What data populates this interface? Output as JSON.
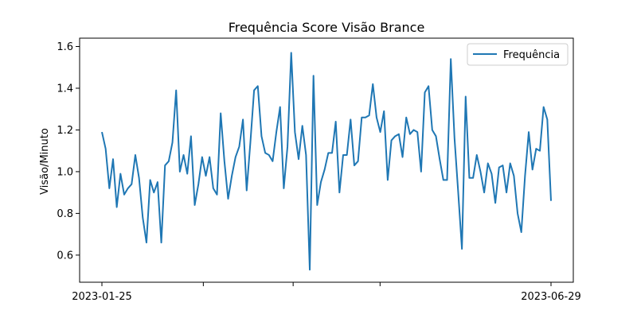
{
  "chart_data": {
    "type": "line",
    "title": "Frequência Score Visão Brance",
    "xlabel": "",
    "ylabel": "Visão/Minuto",
    "ylim": [
      0.47,
      1.64
    ],
    "y_ticks": [
      0.6,
      0.8,
      1.0,
      1.2,
      1.4,
      1.6
    ],
    "y_tick_labels": [
      "0.6",
      "0.8",
      "1.0",
      "1.2",
      "1.4",
      "1.6"
    ],
    "x_start": "2023-01-25",
    "x_end": "2023-06-29",
    "x_tick_labels": [
      {
        "value": "2023-01-25",
        "label": "2023-01-25"
      },
      {
        "value": "2023-03-01",
        "label": ""
      },
      {
        "value": "2023-04-01",
        "label": ""
      },
      {
        "value": "2023-05-01",
        "label": ""
      },
      {
        "value": "2023-06-29",
        "label": "2023-06-29"
      }
    ],
    "grid": false,
    "legend_position": "top-right",
    "series": [
      {
        "name": "Frequência",
        "color": "#1f77b4",
        "values": [
          1.19,
          1.11,
          0.92,
          1.06,
          0.83,
          0.99,
          0.89,
          0.92,
          0.94,
          1.08,
          0.97,
          0.78,
          0.66,
          0.96,
          0.9,
          0.95,
          0.66,
          1.03,
          1.05,
          1.14,
          1.39,
          1.0,
          1.08,
          0.99,
          1.17,
          0.84,
          0.94,
          1.07,
          0.98,
          1.07,
          0.92,
          0.89,
          1.28,
          1.05,
          0.87,
          0.98,
          1.07,
          1.12,
          1.25,
          0.91,
          1.14,
          1.39,
          1.41,
          1.17,
          1.09,
          1.08,
          1.05,
          1.19,
          1.31,
          0.92,
          1.12,
          1.57,
          1.19,
          1.06,
          1.22,
          1.08,
          0.53,
          1.46,
          0.84,
          0.95,
          1.01,
          1.09,
          1.09,
          1.24,
          0.9,
          1.08,
          1.08,
          1.25,
          1.03,
          1.05,
          1.26,
          1.26,
          1.27,
          1.42,
          1.26,
          1.19,
          1.29,
          0.96,
          1.15,
          1.17,
          1.18,
          1.07,
          1.26,
          1.18,
          1.2,
          1.19,
          1.0,
          1.38,
          1.41,
          1.2,
          1.17,
          1.06,
          0.96,
          0.96,
          1.54,
          1.16,
          0.9,
          0.63,
          1.36,
          0.97,
          0.97,
          1.08,
          1.0,
          0.9,
          1.04,
          0.99,
          0.85,
          1.02,
          1.03,
          0.9,
          1.04,
          0.98,
          0.8,
          0.71,
          0.98,
          1.19,
          1.01,
          1.11,
          1.1,
          1.31,
          1.25,
          0.86
        ]
      }
    ]
  }
}
